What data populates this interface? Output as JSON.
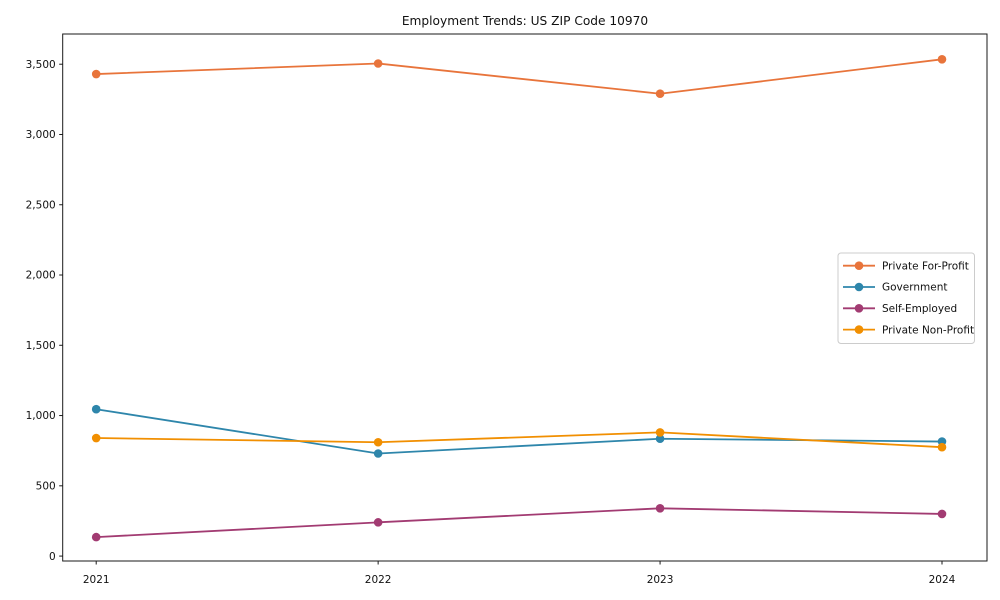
{
  "chart_data": {
    "type": "line",
    "title": "Employment Trends: US ZIP Code 10970",
    "categories": [
      2021,
      2022,
      2023,
      2024
    ],
    "x_tick_labels": [
      "2021",
      "2022",
      "2023",
      "2024"
    ],
    "y_tick_values": [
      0,
      500,
      1000,
      1500,
      2000,
      2500,
      3000,
      3500
    ],
    "y_tick_labels": [
      "0",
      "500",
      "1,000",
      "1,500",
      "2,000",
      "2,500",
      "3,000",
      "3,500"
    ],
    "ylim": [
      -35,
      3715
    ],
    "grid": false,
    "legend_position": "center right",
    "axis_color": "#1a1a1a",
    "legend_border_color": "#cccccc",
    "legend_background": "#ffffff",
    "series": [
      {
        "name": "Private For-Profit",
        "color": "#E8743B",
        "values": [
          3430,
          3505,
          3290,
          3535
        ]
      },
      {
        "name": "Government",
        "color": "#2E86AB",
        "values": [
          1045,
          730,
          835,
          815
        ]
      },
      {
        "name": "Self-Employed",
        "color": "#A23B72",
        "values": [
          135,
          240,
          340,
          300
        ]
      },
      {
        "name": "Private Non-Profit",
        "color": "#F18F01",
        "values": [
          840,
          810,
          880,
          775
        ]
      }
    ]
  }
}
